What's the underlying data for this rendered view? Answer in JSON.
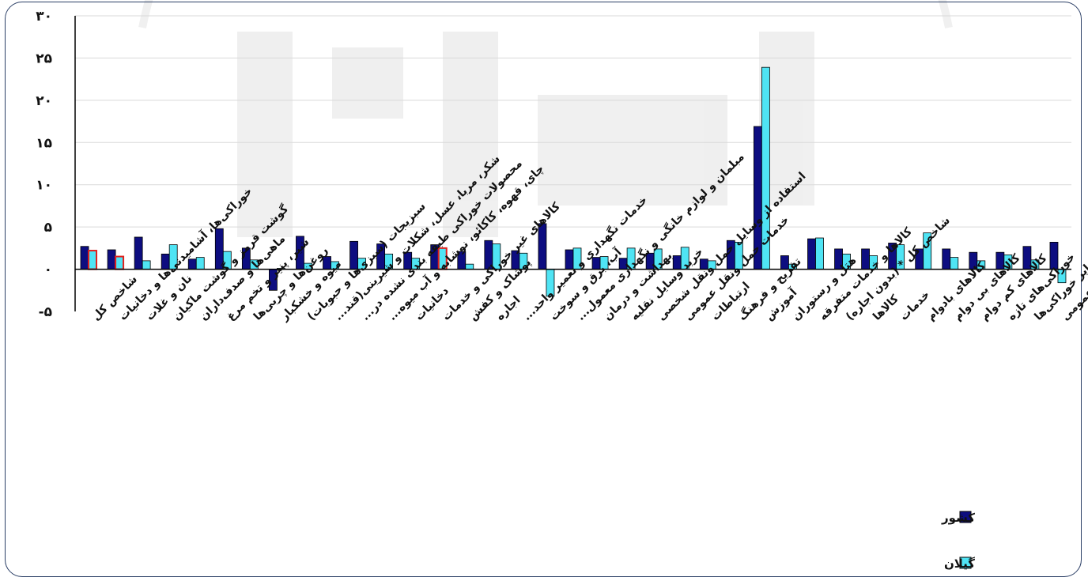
{
  "chart_data": {
    "type": "bar",
    "title": "",
    "xlabel": "",
    "ylabel": "",
    "ylim": [
      -5,
      30
    ],
    "yticks": [
      -5,
      0,
      5,
      10,
      15,
      20,
      25,
      30
    ],
    "ytick_labels": [
      "-۵",
      "۰",
      "۵",
      "۱۰",
      "۱۵",
      "۲۰",
      "۲۵",
      "۳۰"
    ],
    "grid": true,
    "legend_position": "bottom-right",
    "categories": [
      "شاخص کل",
      "خوراکی‌ها، آشامیدنی‌ها و دخانیات",
      "نان و غلات",
      "گوشت قرمز و گوشت ماکیان",
      "ماهی‌ها و صدف‌داران",
      "شیر، پنیر و تخم مرغ",
      "روغن‌ها و چربی‌ها",
      "میوه و خشکبار",
      "سبزیجات (سبزی‌ها و حبوبات)",
      "شکر، مربا، عسل، شکلات و شیرینی(قند...",
      "محصولات خوراکی طبقه بندی نشده در...",
      "چای، قهوه، کاکائو، نوشابه و آب میوه...",
      "دخانیات",
      "کالاهای غیر خوراکی و خدمات",
      "پوشاک و کفش",
      "اجاره",
      "خدمات نگهداری و تعمیر واحد...",
      "آب، برق و سوخت",
      "مبلمان و لوازم خانگی و نگهداری معمول...",
      "بهداشت و درمان",
      "خرید وسایل نقلیه",
      "استفاده از وسایل حمل ونقل شخصی",
      "خدمات حمل ونقل عمومی",
      "ارتباطات",
      "تفریح و فرهنگ",
      "آموزش",
      "هتل و رستوران",
      "کالاها و خدمات متفرقه",
      "شاخص کل * (بدون اجاره)",
      "کالاها",
      "خدمات",
      "کالاهای بادوام",
      "کالاهای بی دوام",
      "کالاهای کم دوام",
      "خوراکی‌های تازه",
      "سایر خوراکی‌ها",
      "کالاها و خدمات عمومی"
    ],
    "series": [
      {
        "name": "کشور",
        "color": "#0d0d80",
        "values": [
          2.7,
          2.3,
          3.8,
          1.8,
          1.2,
          4.8,
          2.5,
          -2.5,
          3.9,
          1.5,
          3.3,
          3.0,
          2.0,
          2.9,
          2.1,
          3.4,
          2.2,
          5.4,
          2.3,
          1.4,
          1.3,
          1.9,
          1.6,
          1.2,
          3.4,
          16.9,
          1.6,
          3.6,
          2.4,
          2.4,
          3.1,
          2.4,
          2.4,
          2.0,
          2.0,
          2.7,
          3.2
        ]
      },
      {
        "name": "گیلان",
        "color": "#4fe4f4",
        "values": [
          2.2,
          1.5,
          1.0,
          2.9,
          1.4,
          2.1,
          1.1,
          0.1,
          0.7,
          0.9,
          1.3,
          1.8,
          1.3,
          2.5,
          0.6,
          3.0,
          1.9,
          -3.2,
          2.5,
          1.5,
          2.5,
          2.4,
          2.6,
          1.0,
          3.2,
          23.9,
          0.6,
          3.7,
          1.8,
          1.6,
          2.9,
          4.3,
          1.4,
          1.0,
          1.7,
          1.1,
          -1.6
        ]
      }
    ],
    "highlighted_bars": [
      {
        "series": 1,
        "index": 0,
        "edge_color": "#e0201c"
      },
      {
        "series": 1,
        "index": 1,
        "edge_color": "#e0201c"
      },
      {
        "series": 1,
        "index": 13,
        "edge_color": "#e0201c"
      }
    ],
    "legend": [
      {
        "label": "کشور",
        "color": "#0d0d80"
      },
      {
        "label": "گیلان",
        "color": "#4fe4f4"
      }
    ]
  }
}
